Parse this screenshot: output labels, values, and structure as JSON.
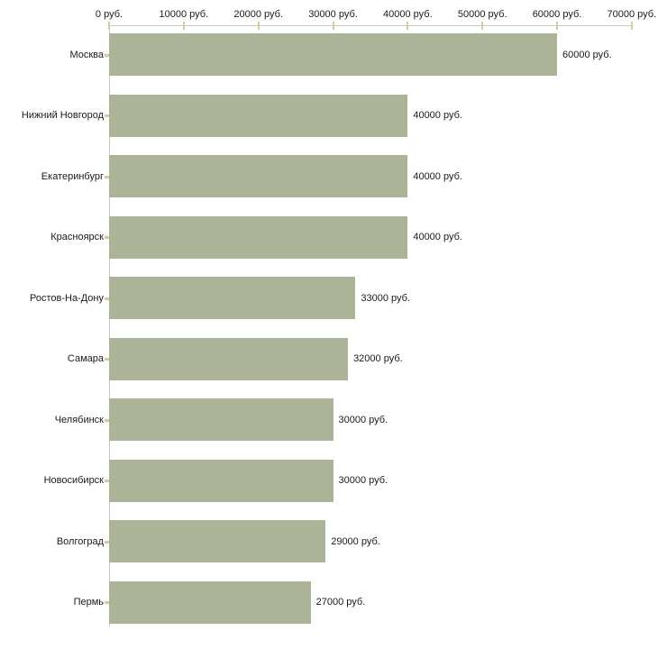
{
  "chart_data": {
    "type": "bar",
    "orientation": "horizontal",
    "title": "",
    "xlabel": "",
    "ylabel": "",
    "unit": "руб.",
    "grid": false,
    "legend": false,
    "categories": [
      "Москва",
      "Нижний Новгород",
      "Екатеринбург",
      "Красноярск",
      "Ростов-На-Дону",
      "Самара",
      "Челябинск",
      "Новосибирск",
      "Волгоград",
      "Пермь"
    ],
    "values": [
      60000,
      40000,
      40000,
      40000,
      33000,
      32000,
      30000,
      30000,
      29000,
      27000
    ],
    "bar_labels": [
      "60000 руб.",
      "40000 руб.",
      "40000 руб.",
      "40000 руб.",
      "33000 руб.",
      "32000 руб.",
      "30000 руб.",
      "30000 руб.",
      "29000 руб.",
      "27000 руб."
    ],
    "x_tick_values": [
      0,
      10000,
      20000,
      30000,
      40000,
      50000,
      60000,
      70000
    ],
    "x_tick_labels": [
      "0 руб.",
      "10000 руб.",
      "20000 руб.",
      "30000 руб.",
      "40000 руб.",
      "50000 руб.",
      "60000 руб.",
      "70000 руб."
    ],
    "xlim": [
      0,
      70000
    ],
    "colors": {
      "bar": "#abb496",
      "axis_line": "#c6c6c6",
      "tick_mark": "#cdcda9",
      "text": "#1a1a1a",
      "background": "#ffffff"
    }
  }
}
